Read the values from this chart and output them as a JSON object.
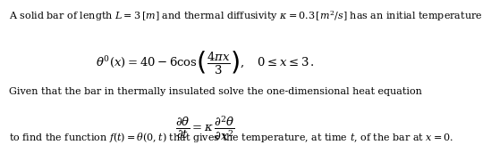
{
  "line1": "A solid bar of length $L = 3\\,[m]$ and thermal diffusivity $\\kappa = 0.3\\,[m^2/s]$ has an initial temperature",
  "eq1": "$\\theta^0(x) = 40 - 6\\cos\\!\\left(\\dfrac{4\\pi x}{3}\\right),\\quad 0 \\leq x \\leq 3\\,.$",
  "line2": "Given that the bar in thermally insulated solve the one-dimensional heat equation",
  "eq2": "$\\dfrac{\\partial\\theta}{\\partial t} = \\kappa\\,\\dfrac{\\partial^2\\theta}{\\partial x^2}$",
  "line3": "to find the function $f(t) = \\theta(0,t)$ that gives the temperature, at time $t$, of the bar at $x = 0$.",
  "bg_color": "#ffffff",
  "text_color": "#000000",
  "fontsize_body": 8.0,
  "fontsize_eq": 9.5
}
